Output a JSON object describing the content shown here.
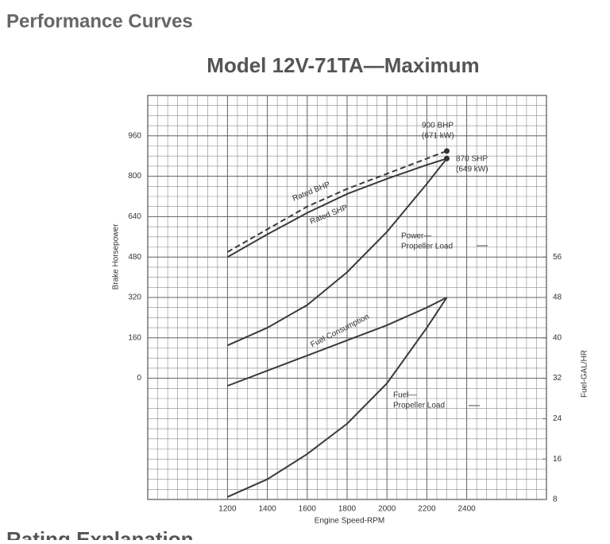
{
  "header": {
    "title": "Performance Curves",
    "next_section": "Rating Explanation"
  },
  "chart_data": {
    "type": "line",
    "title": "Model 12V-71TA—Maximum",
    "x_label": "Engine Speed-RPM",
    "y_label": "Brake Horsepower",
    "y2_label": "Fuel-GAL/HR",
    "x": [
      1200,
      1400,
      1600,
      1800,
      2000,
      2200,
      2300
    ],
    "xlim": [
      800,
      2800
    ],
    "xticks": [
      1200,
      1400,
      1600,
      1800,
      2000,
      2200,
      2400
    ],
    "ylim": [
      -480,
      1120
    ],
    "yticks": [
      0,
      160,
      320,
      480,
      640,
      800,
      960
    ],
    "y2lim": [
      8,
      88
    ],
    "y2ticks": [
      8,
      16,
      24,
      32,
      40,
      48,
      56
    ],
    "grid": true,
    "series": [
      {
        "name": "Rated BHP",
        "color": "#3a3a3a",
        "dashed": true,
        "values": [
          500,
          590,
          680,
          750,
          810,
          870,
          900
        ]
      },
      {
        "name": "Rated SHP",
        "color": "#3a3a3a",
        "values": [
          480,
          570,
          655,
          730,
          790,
          845,
          870
        ]
      },
      {
        "name": [
          "Power—",
          "Propeller Load"
        ],
        "color": "#3a3a3a",
        "values": [
          130,
          200,
          290,
          420,
          580,
          770,
          870
        ]
      },
      {
        "name": "Fuel Consumption",
        "color": "#3a3a3a",
        "axis": "y2",
        "values": [
          30.5,
          33.5,
          36.5,
          39.5,
          42.5,
          46,
          48
        ]
      },
      {
        "name": [
          "Fuel—",
          "Propeller Load"
        ],
        "color": "#3a3a3a",
        "axis": "y2",
        "values": [
          8.5,
          12,
          17,
          23,
          31,
          42,
          48
        ]
      }
    ],
    "annotations": [
      [
        "900 BHP",
        "(671 kW)"
      ],
      [
        "870 SHP",
        "(649 kW)"
      ]
    ]
  }
}
